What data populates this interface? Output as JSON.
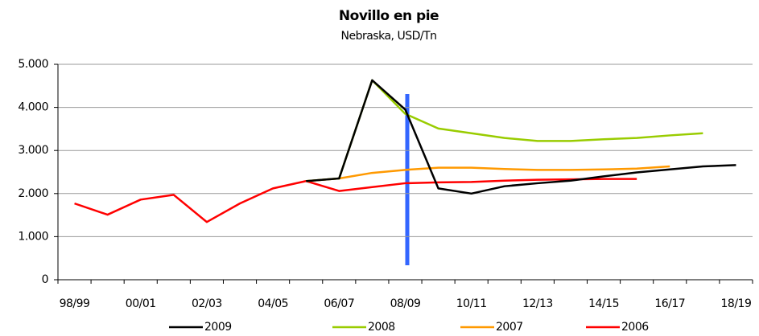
{
  "chart_data": {
    "type": "line",
    "title": "Novillo en pie",
    "subtitle": "Nebraska, USD/Tn",
    "categories": [
      "98/99",
      null,
      "00/01",
      null,
      "02/03",
      null,
      "04/05",
      null,
      "06/07",
      null,
      "08/09",
      null,
      "10/11",
      null,
      "12/13",
      null,
      "14/15",
      null,
      "16/17",
      null,
      "18/19"
    ],
    "series": [
      {
        "name": "2009",
        "color": "#000000",
        "values": [
          null,
          null,
          null,
          null,
          null,
          null,
          null,
          2290,
          2350,
          4630,
          3950,
          2120,
          2000,
          2170,
          2240,
          2300,
          2400,
          2490,
          2560,
          2630,
          2660
        ]
      },
      {
        "name": "2008",
        "color": "#99cc00",
        "values": [
          null,
          null,
          null,
          null,
          null,
          null,
          null,
          2290,
          2350,
          4630,
          3850,
          3510,
          3400,
          3290,
          3220,
          3220,
          3260,
          3290,
          3350,
          3400,
          null
        ]
      },
      {
        "name": "2007",
        "color": "#ff9900",
        "values": [
          null,
          null,
          null,
          null,
          null,
          null,
          null,
          2290,
          2350,
          2480,
          2550,
          2600,
          2600,
          2570,
          2550,
          2550,
          2560,
          2580,
          2630,
          null,
          null
        ]
      },
      {
        "name": "2006",
        "color": "#ff0000",
        "values": [
          1770,
          1510,
          1860,
          1970,
          1340,
          1770,
          2120,
          2290,
          2060,
          2150,
          2240,
          2260,
          2270,
          2300,
          2320,
          2330,
          2340,
          2340,
          null,
          null,
          null
        ]
      }
    ],
    "ylim": [
      0,
      5000
    ],
    "yticks": [
      0,
      {
        "value": 1000,
        "label": "1.000"
      },
      {
        "value": 2000,
        "label": "2.000"
      },
      {
        "value": 3000,
        "label": "3.000"
      },
      {
        "value": 4000,
        "label": "4.000"
      },
      {
        "value": 5000,
        "label": "5.000"
      }
    ],
    "grid": true,
    "legend": "bottom"
  }
}
